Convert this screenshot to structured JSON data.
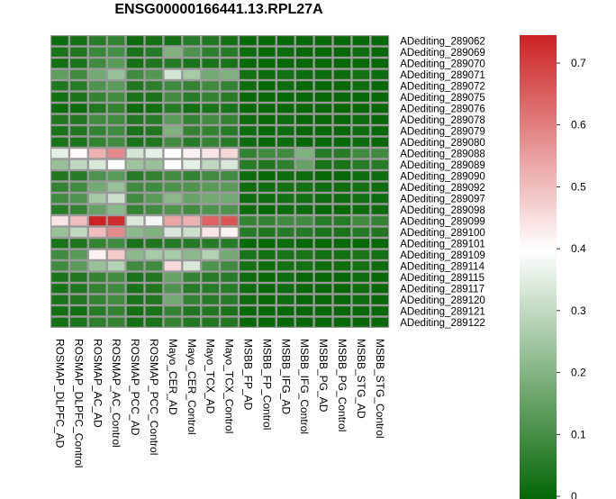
{
  "chart_data": {
    "type": "heatmap",
    "title": "ENSG00000166441.13.RPL27A",
    "rows": [
      "ADediting_289062",
      "ADediting_289069",
      "ADediting_289070",
      "ADediting_289071",
      "ADediting_289072",
      "ADediting_289075",
      "ADediting_289076",
      "ADediting_289078",
      "ADediting_289079",
      "ADediting_289080",
      "ADediting_289088",
      "ADediting_289089",
      "ADediting_289090",
      "ADediting_289092",
      "ADediting_289097",
      "ADediting_289098",
      "ADediting_289099",
      "ADediting_289100",
      "ADediting_289101",
      "ADediting_289109",
      "ADediting_289114",
      "ADediting_289115",
      "ADediting_289117",
      "ADediting_289120",
      "ADediting_289121",
      "ADediting_289122"
    ],
    "columns": [
      "ROSMAP_DLPFC_AD",
      "ROSMAP_DLPFC_Control",
      "ROSMAP_AC_AD",
      "ROSMAP_AC_Control",
      "ROSMAP_PCC_AD",
      "ROSMAP_PCC_Control",
      "Mayo_CER_AD",
      "Mayo_CER_Control",
      "Mayo_TCX_AD",
      "Mayo_TCX_Control",
      "MSBB_FP_AD",
      "MSBB_FP_Control",
      "MSBB_IFG_AD",
      "MSBB_IFG_Control",
      "MSBB_PG_AD",
      "MSBB_PG_Control",
      "MSBB_STG_AD",
      "MSBB_STG_Control"
    ],
    "values": [
      [
        0.02,
        0.03,
        0.06,
        0.08,
        0.02,
        0.03,
        0.03,
        0.06,
        0.05,
        0.03,
        0.01,
        0.01,
        0.01,
        0.01,
        0.01,
        0.01,
        0.01,
        0.01
      ],
      [
        0.04,
        0.05,
        0.09,
        0.11,
        0.04,
        0.06,
        0.2,
        0.12,
        0.07,
        0.06,
        0.02,
        0.01,
        0.02,
        0.01,
        0.01,
        0.01,
        0.02,
        0.01
      ],
      [
        0.03,
        0.04,
        0.1,
        0.14,
        0.03,
        0.05,
        0.06,
        0.04,
        0.04,
        0.04,
        0.01,
        0.01,
        0.01,
        0.01,
        0.01,
        0.01,
        0.01,
        0.01
      ],
      [
        0.15,
        0.1,
        0.18,
        0.24,
        0.1,
        0.13,
        0.33,
        0.26,
        0.18,
        0.2,
        0.03,
        0.02,
        0.03,
        0.02,
        0.02,
        0.02,
        0.03,
        0.02
      ],
      [
        0.05,
        0.06,
        0.12,
        0.14,
        0.05,
        0.07,
        0.1,
        0.08,
        0.1,
        0.08,
        0.02,
        0.01,
        0.02,
        0.01,
        0.01,
        0.01,
        0.02,
        0.01
      ],
      [
        0.03,
        0.04,
        0.08,
        0.1,
        0.04,
        0.04,
        0.1,
        0.06,
        0.08,
        0.06,
        0.01,
        0.01,
        0.01,
        0.01,
        0.01,
        0.01,
        0.01,
        0.01
      ],
      [
        0.02,
        0.02,
        0.05,
        0.08,
        0.02,
        0.03,
        0.06,
        0.03,
        0.04,
        0.04,
        0.01,
        0.01,
        0.01,
        0.01,
        0.01,
        0.01,
        0.01,
        0.01
      ],
      [
        0.05,
        0.05,
        0.1,
        0.1,
        0.05,
        0.06,
        0.14,
        0.08,
        0.1,
        0.08,
        0.02,
        0.01,
        0.02,
        0.01,
        0.01,
        0.01,
        0.02,
        0.01
      ],
      [
        0.04,
        0.05,
        0.08,
        0.1,
        0.04,
        0.05,
        0.2,
        0.08,
        0.08,
        0.06,
        0.02,
        0.01,
        0.02,
        0.01,
        0.01,
        0.01,
        0.02,
        0.01
      ],
      [
        0.04,
        0.04,
        0.08,
        0.1,
        0.04,
        0.05,
        0.1,
        0.06,
        0.08,
        0.06,
        0.02,
        0.01,
        0.02,
        0.01,
        0.01,
        0.01,
        0.02,
        0.01
      ],
      [
        0.36,
        0.41,
        0.52,
        0.58,
        0.33,
        0.36,
        0.4,
        0.42,
        0.44,
        0.46,
        0.08,
        0.1,
        0.1,
        0.2,
        0.06,
        0.06,
        0.1,
        0.1
      ],
      [
        0.24,
        0.3,
        0.34,
        0.4,
        0.25,
        0.24,
        0.4,
        0.36,
        0.3,
        0.34,
        0.06,
        0.05,
        0.07,
        0.16,
        0.04,
        0.04,
        0.06,
        0.06
      ],
      [
        0.05,
        0.06,
        0.12,
        0.14,
        0.06,
        0.08,
        0.1,
        0.08,
        0.1,
        0.1,
        0.02,
        0.01,
        0.02,
        0.02,
        0.01,
        0.01,
        0.02,
        0.02
      ],
      [
        0.08,
        0.1,
        0.18,
        0.24,
        0.1,
        0.1,
        0.12,
        0.12,
        0.14,
        0.14,
        0.02,
        0.02,
        0.03,
        0.03,
        0.02,
        0.02,
        0.03,
        0.02
      ],
      [
        0.1,
        0.12,
        0.26,
        0.32,
        0.1,
        0.14,
        0.22,
        0.16,
        0.18,
        0.18,
        0.02,
        0.02,
        0.03,
        0.03,
        0.02,
        0.02,
        0.03,
        0.02
      ],
      [
        0.06,
        0.08,
        0.16,
        0.22,
        0.08,
        0.1,
        0.12,
        0.1,
        0.12,
        0.12,
        0.02,
        0.01,
        0.02,
        0.02,
        0.01,
        0.01,
        0.02,
        0.02
      ],
      [
        0.44,
        0.5,
        0.74,
        0.72,
        0.34,
        0.38,
        0.54,
        0.52,
        0.64,
        0.66,
        0.08,
        0.08,
        0.1,
        0.1,
        0.06,
        0.06,
        0.1,
        0.08
      ],
      [
        0.24,
        0.3,
        0.5,
        0.58,
        0.22,
        0.2,
        0.34,
        0.32,
        0.44,
        0.42,
        0.06,
        0.05,
        0.06,
        0.06,
        0.04,
        0.04,
        0.06,
        0.05
      ],
      [
        0.04,
        0.05,
        0.08,
        0.1,
        0.04,
        0.05,
        0.06,
        0.06,
        0.06,
        0.06,
        0.01,
        0.01,
        0.02,
        0.01,
        0.01,
        0.01,
        0.01,
        0.01
      ],
      [
        0.1,
        0.14,
        0.42,
        0.48,
        0.22,
        0.26,
        0.26,
        0.22,
        0.28,
        0.18,
        0.04,
        0.03,
        0.04,
        0.04,
        0.03,
        0.03,
        0.04,
        0.03
      ],
      [
        0.1,
        0.14,
        0.24,
        0.28,
        0.1,
        0.1,
        0.46,
        0.34,
        0.12,
        0.1,
        0.03,
        0.02,
        0.03,
        0.03,
        0.02,
        0.02,
        0.03,
        0.02
      ],
      [
        0.04,
        0.05,
        0.08,
        0.1,
        0.04,
        0.05,
        0.16,
        0.08,
        0.06,
        0.06,
        0.02,
        0.01,
        0.02,
        0.01,
        0.01,
        0.01,
        0.02,
        0.01
      ],
      [
        0.04,
        0.05,
        0.08,
        0.1,
        0.04,
        0.05,
        0.12,
        0.06,
        0.06,
        0.06,
        0.02,
        0.01,
        0.02,
        0.01,
        0.01,
        0.01,
        0.02,
        0.01
      ],
      [
        0.04,
        0.05,
        0.08,
        0.1,
        0.04,
        0.05,
        0.18,
        0.08,
        0.06,
        0.06,
        0.02,
        0.01,
        0.02,
        0.01,
        0.01,
        0.01,
        0.02,
        0.01
      ],
      [
        0.03,
        0.03,
        0.06,
        0.08,
        0.03,
        0.04,
        0.08,
        0.05,
        0.05,
        0.04,
        0.01,
        0.01,
        0.01,
        0.01,
        0.01,
        0.01,
        0.01,
        0.01
      ],
      [
        0.03,
        0.04,
        0.07,
        0.08,
        0.03,
        0.04,
        0.08,
        0.05,
        0.05,
        0.05,
        0.01,
        0.01,
        0.01,
        0.01,
        0.01,
        0.01,
        0.01,
        0.01
      ]
    ],
    "color_scale": {
      "low_color": "#006400",
      "mid_color": "#ffffff",
      "high_color": "#cc2222",
      "domain": [
        0.0,
        0.4,
        0.74
      ],
      "ticks": [
        0,
        0.1,
        0.2,
        0.3,
        0.4,
        0.5,
        0.6,
        0.7
      ]
    },
    "cell_border_color": "#9a9a9a",
    "legend_placement": "right"
  }
}
